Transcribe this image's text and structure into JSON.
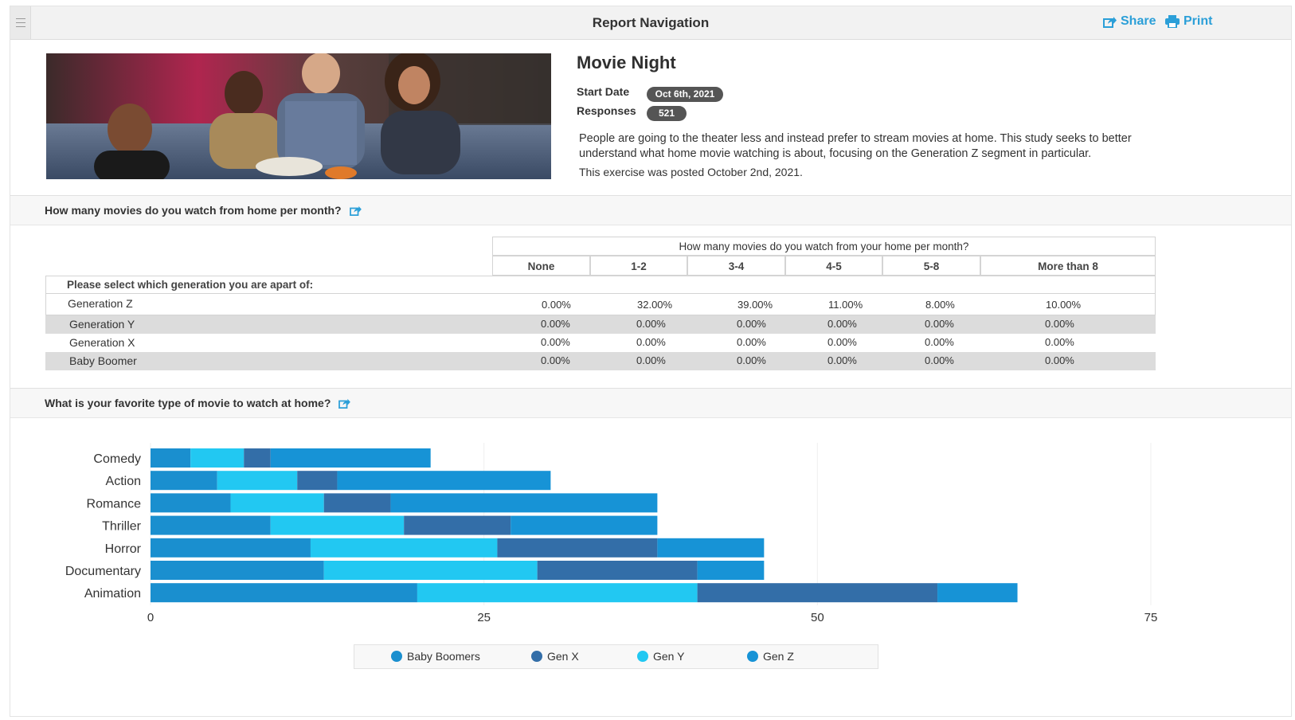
{
  "header": {
    "title": "Report Navigation",
    "share_label": "Share",
    "print_label": "Print"
  },
  "exercise": {
    "title": "Movie Night",
    "start_date_label": "Start Date",
    "start_date": "Oct 6th, 2021",
    "responses_label": "Responses",
    "responses": "521",
    "description": "People are going to the theater less and instead prefer to stream movies at home. This study seeks to better understand what home movie  watching is about, focusing on the Generation Z segment in particular.",
    "posted": "This exercise was posted October 2nd, 2021."
  },
  "question1": {
    "title": "How many movies do you watch from home per month?",
    "table_title": "How many movies do you watch from your home per month?",
    "row_header": "Please select which generation you are apart of:",
    "columns": [
      "None",
      "1-2",
      "3-4",
      "4-5",
      "5-8",
      "More than 8"
    ],
    "rows": [
      {
        "label": "Generation Z",
        "values": [
          "0.00%",
          "32.00%",
          "39.00%",
          "11.00%",
          "8.00%",
          "10.00%"
        ]
      },
      {
        "label": "Generation Y",
        "values": [
          "0.00%",
          "0.00%",
          "0.00%",
          "0.00%",
          "0.00%",
          "0.00%"
        ]
      },
      {
        "label": "Generation X",
        "values": [
          "0.00%",
          "0.00%",
          "0.00%",
          "0.00%",
          "0.00%",
          "0.00%"
        ]
      },
      {
        "label": "Baby Boomer",
        "values": [
          "0.00%",
          "0.00%",
          "0.00%",
          "0.00%",
          "0.00%",
          "0.00%"
        ]
      }
    ]
  },
  "question2": {
    "title": "What is your favorite type of movie to watch at home?"
  },
  "chart_data": {
    "type": "bar",
    "orientation": "horizontal",
    "stacked": true,
    "categories": [
      "Comedy",
      "Action",
      "Romance",
      "Thriller",
      "Horror",
      "Documentary",
      "Animation"
    ],
    "series": [
      {
        "name": "Baby Boomers",
        "color": "#1a8fcf",
        "values": [
          3,
          5,
          6,
          9,
          12,
          13,
          20
        ]
      },
      {
        "name": "Gen Y",
        "color": "#22c8f2",
        "values": [
          4,
          6,
          7,
          10,
          14,
          16,
          21
        ]
      },
      {
        "name": "Gen X",
        "color": "#336ea8",
        "values": [
          2,
          3,
          5,
          8,
          12,
          12,
          18
        ]
      },
      {
        "name": "Gen Z",
        "color": "#1793d6",
        "values": [
          12,
          16,
          20,
          11,
          8,
          5,
          6
        ]
      }
    ],
    "legend_order": [
      "Baby Boomers",
      "Gen X",
      "Gen Y",
      "Gen Z"
    ],
    "xlim": [
      0,
      75
    ],
    "xticks": [
      "0",
      "25",
      "50",
      "75"
    ],
    "grid": true,
    "legend_position": "bottom"
  },
  "colors": {
    "accent": "#2b9fd8",
    "pill_bg": "#555555",
    "row_shade": "#dcdcdc"
  }
}
